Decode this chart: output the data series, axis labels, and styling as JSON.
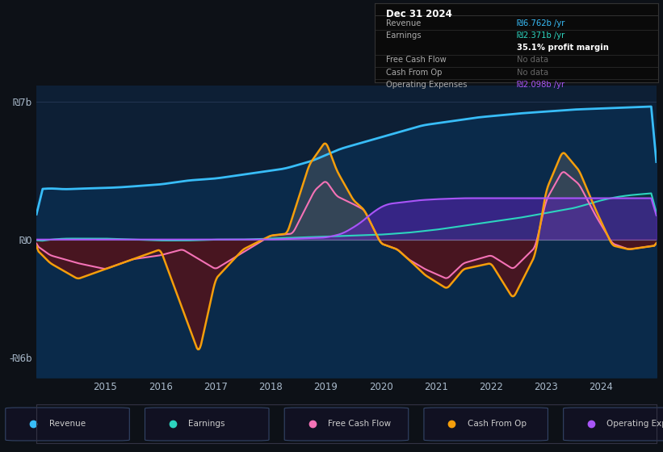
{
  "background_color": "#0d1117",
  "plot_bg_color": "#0d1f35",
  "ylabel_top": "₪7b",
  "ylabel_bottom": "-₪6b",
  "ylabel_zero": "₪0",
  "x_ticks": [
    2015,
    2016,
    2017,
    2018,
    2019,
    2020,
    2021,
    2022,
    2023,
    2024
  ],
  "legend": [
    {
      "label": "Revenue",
      "color": "#38bdf8"
    },
    {
      "label": "Earnings",
      "color": "#2dd4bf"
    },
    {
      "label": "Free Cash Flow",
      "color": "#f472b6"
    },
    {
      "label": "Cash From Op",
      "color": "#f59e0b"
    },
    {
      "label": "Operating Expenses",
      "color": "#a855f7"
    }
  ],
  "tooltip": {
    "date": "Dec 31 2024",
    "rows": [
      {
        "label": "Revenue",
        "value": "₪6.762b /yr",
        "color": "#38bdf8"
      },
      {
        "label": "Earnings",
        "value": "₪2.371b /yr",
        "color": "#2dd4bf"
      },
      {
        "label": "",
        "value": "35.1% profit margin",
        "color": "#ffffff",
        "bold": true
      },
      {
        "label": "Free Cash Flow",
        "value": "No data",
        "color": "#666666"
      },
      {
        "label": "Cash From Op",
        "value": "No data",
        "color": "#666666"
      },
      {
        "label": "Operating Expenses",
        "value": "₪2.098b /yr",
        "color": "#a855f7"
      }
    ]
  },
  "revenue": [
    2.55,
    2.6,
    2.55,
    2.58,
    2.6,
    2.62,
    2.65,
    2.7,
    2.75,
    2.8,
    2.9,
    3.0,
    3.05,
    3.1,
    3.2,
    3.3,
    3.4,
    3.5,
    3.6,
    3.8,
    4.0,
    4.3,
    4.6,
    5.0,
    5.4,
    5.8,
    6.0,
    6.2,
    6.4,
    6.6,
    6.762
  ],
  "revenue_t": [
    2013.75,
    2014.0,
    2014.25,
    2014.5,
    2014.75,
    2015.0,
    2015.25,
    2015.5,
    2015.75,
    2016.0,
    2016.25,
    2016.5,
    2016.75,
    2017.0,
    2017.25,
    2017.5,
    2017.75,
    2018.0,
    2018.25,
    2018.5,
    2018.75,
    2019.0,
    2019.25,
    2019.75,
    2020.25,
    2020.75,
    2021.25,
    2021.75,
    2022.5,
    2023.5,
    2025.0
  ],
  "earnings": [
    -0.1,
    0.0,
    0.05,
    0.05,
    0.05,
    0.05,
    0.0,
    -0.05,
    -0.05,
    0.0,
    0.0,
    0.05,
    0.1,
    0.15,
    0.2,
    0.25,
    0.35,
    0.5,
    0.7,
    0.9,
    1.1,
    1.35,
    1.6,
    1.8,
    2.0,
    2.15,
    2.25,
    2.371
  ],
  "earnings_t": [
    2013.75,
    2014.0,
    2014.25,
    2014.5,
    2014.75,
    2015.0,
    2015.5,
    2016.0,
    2016.5,
    2017.0,
    2017.5,
    2018.0,
    2018.5,
    2019.0,
    2019.5,
    2020.0,
    2020.5,
    2021.0,
    2021.5,
    2022.0,
    2022.5,
    2023.0,
    2023.5,
    2023.75,
    2024.0,
    2024.25,
    2024.5,
    2025.0
  ],
  "cashop": [
    -0.5,
    -1.2,
    -2.0,
    -1.5,
    -1.0,
    -0.5,
    -5.8,
    -2.0,
    -0.5,
    0.2,
    0.3,
    3.8,
    5.0,
    3.5,
    2.0,
    1.5,
    -0.2,
    -0.5,
    -1.0,
    -1.8,
    -2.5,
    -1.5,
    -1.2,
    -3.0,
    -0.8,
    2.5,
    4.5,
    3.5,
    1.5,
    -0.3,
    -0.5,
    -0.3
  ],
  "cashop_t": [
    2013.75,
    2014.0,
    2014.5,
    2015.0,
    2015.5,
    2016.0,
    2016.7,
    2017.0,
    2017.5,
    2018.0,
    2018.3,
    2018.7,
    2019.0,
    2019.2,
    2019.5,
    2019.7,
    2020.0,
    2020.3,
    2020.5,
    2020.8,
    2021.2,
    2021.5,
    2022.0,
    2022.4,
    2022.8,
    2023.0,
    2023.3,
    2023.6,
    2023.9,
    2024.2,
    2024.5,
    2025.0
  ],
  "fcf": [
    -0.3,
    -0.8,
    -1.2,
    -1.5,
    -1.0,
    -0.8,
    -0.5,
    -1.0,
    -1.5,
    0.2,
    0.3,
    2.5,
    3.0,
    2.2,
    1.8,
    1.5,
    -0.2,
    -0.5,
    -1.0,
    -1.5,
    -2.0,
    -1.2,
    -0.8,
    -1.5,
    -0.4,
    2.0,
    3.5,
    2.8,
    1.2,
    -0.2,
    -0.5,
    -0.3
  ],
  "fcf_t": [
    2013.75,
    2014.0,
    2014.5,
    2015.0,
    2015.5,
    2016.0,
    2016.4,
    2016.7,
    2017.0,
    2018.0,
    2018.4,
    2018.8,
    2019.0,
    2019.2,
    2019.5,
    2019.7,
    2020.0,
    2020.3,
    2020.5,
    2020.8,
    2021.2,
    2021.5,
    2022.0,
    2022.4,
    2022.8,
    2023.0,
    2023.3,
    2023.6,
    2023.9,
    2024.2,
    2024.5,
    2025.0
  ],
  "opex": [
    0.0,
    0.0,
    0.0,
    0.0,
    0.0,
    0.0,
    0.0,
    0.0,
    0.0,
    0.0,
    0.05,
    0.1,
    0.3,
    0.8,
    1.5,
    1.8,
    1.9,
    2.0,
    2.05,
    2.1,
    2.1,
    2.1,
    2.1,
    2.1,
    2.1,
    2.1,
    2.098
  ],
  "opex_t": [
    2013.75,
    2014.0,
    2014.5,
    2015.0,
    2015.5,
    2016.0,
    2016.5,
    2017.0,
    2017.5,
    2018.0,
    2018.5,
    2019.0,
    2019.3,
    2019.6,
    2019.9,
    2020.1,
    2020.4,
    2020.7,
    2021.0,
    2021.5,
    2022.0,
    2022.5,
    2023.0,
    2023.5,
    2024.0,
    2024.5,
    2025.0
  ]
}
